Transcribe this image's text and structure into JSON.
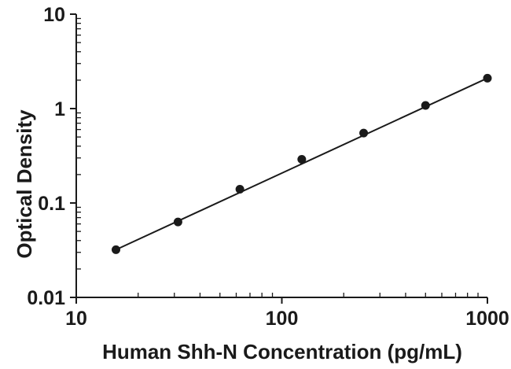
{
  "chart_data": {
    "type": "scatter",
    "subtype": "elisa-standard-curve",
    "title": "",
    "xlabel": "Human Shh-N Concentration (pg/mL)",
    "ylabel": "Optical Density",
    "x_scale": "log",
    "y_scale": "log",
    "xlim": [
      10,
      1000
    ],
    "ylim": [
      0.01,
      10
    ],
    "grid": false,
    "legend": false,
    "x_ticks": {
      "values": [
        10,
        100,
        1000
      ],
      "labels": [
        "10",
        "100",
        "1000"
      ]
    },
    "y_ticks": {
      "values": [
        10,
        1,
        0.1,
        0.01
      ],
      "labels": [
        "10",
        "1",
        "0.1",
        "0.01"
      ]
    },
    "series": [
      {
        "name": "standard-curve",
        "marker": "filled-circle",
        "line": "straight-fit",
        "color": "#1a1a1a",
        "x": [
          15.6,
          31.25,
          62.5,
          125,
          250,
          500,
          1000
        ],
        "y": [
          0.032,
          0.063,
          0.14,
          0.29,
          0.55,
          1.08,
          2.1
        ]
      }
    ]
  },
  "colors": {
    "background": "#ffffff",
    "axis": "#1a1a1a",
    "text": "#1a1a1a"
  }
}
